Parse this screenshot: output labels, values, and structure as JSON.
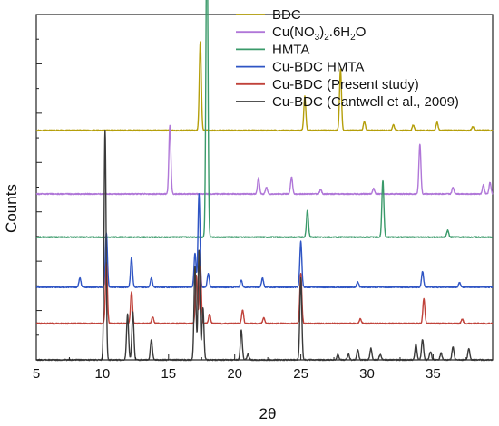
{
  "chart_data": {
    "type": "line",
    "xlabel": "2θ",
    "ylabel": "Counts",
    "xlim": [
      5,
      39.5
    ],
    "x_ticks": [
      5,
      10,
      15,
      20,
      25,
      30,
      35
    ],
    "x_tick_labels": [
      "5",
      "10",
      "15",
      "20",
      "25",
      "30",
      "35"
    ],
    "y_ticks_labeled": false,
    "grid": false,
    "legend_position": "top-right",
    "series": [
      {
        "name": "BDC",
        "color": "#b59f0b",
        "baseline": 5.05,
        "peaks": [
          [
            17.4,
            1.95
          ],
          [
            25.3,
            0.75
          ],
          [
            28.0,
            1.35
          ],
          [
            29.8,
            0.2
          ],
          [
            32.0,
            0.12
          ],
          [
            33.5,
            0.12
          ],
          [
            35.3,
            0.18
          ],
          [
            38.0,
            0.08
          ]
        ]
      },
      {
        "name": "Cu(NO3)2.6H2O",
        "color": "#b077d8",
        "baseline": 3.65,
        "peaks": [
          [
            15.1,
            1.5
          ],
          [
            21.8,
            0.35
          ],
          [
            24.3,
            0.38
          ],
          [
            22.4,
            0.15
          ],
          [
            26.5,
            0.1
          ],
          [
            30.5,
            0.12
          ],
          [
            34.0,
            1.1
          ],
          [
            36.5,
            0.15
          ],
          [
            38.8,
            0.2
          ],
          [
            39.3,
            0.25
          ]
        ]
      },
      {
        "name": "HMTA",
        "color": "#3a9a6a",
        "baseline": 2.7,
        "peaks": [
          [
            17.9,
            6.95
          ],
          [
            25.5,
            0.6
          ],
          [
            31.2,
            1.25
          ],
          [
            36.1,
            0.15
          ]
        ]
      },
      {
        "name": "Cu-BDC HMTA",
        "color": "#2f55c4",
        "baseline": 1.6,
        "peaks": [
          [
            8.3,
            0.2
          ],
          [
            10.3,
            1.2
          ],
          [
            12.2,
            0.65
          ],
          [
            13.7,
            0.2
          ],
          [
            17.0,
            0.75
          ],
          [
            17.3,
            2.05
          ],
          [
            18.0,
            0.3
          ],
          [
            20.5,
            0.15
          ],
          [
            22.1,
            0.2
          ],
          [
            25.0,
            1.0
          ],
          [
            29.3,
            0.12
          ],
          [
            34.2,
            0.35
          ],
          [
            37.0,
            0.1
          ]
        ]
      },
      {
        "name": "Cu-BDC (Present study)",
        "color": "#c0423a",
        "baseline": 0.8,
        "peaks": [
          [
            10.3,
            1.35
          ],
          [
            12.2,
            0.7
          ],
          [
            13.8,
            0.15
          ],
          [
            17.1,
            1.05
          ],
          [
            17.4,
            1.25
          ],
          [
            18.1,
            0.2
          ],
          [
            20.6,
            0.3
          ],
          [
            22.2,
            0.12
          ],
          [
            25.0,
            1.1
          ],
          [
            29.5,
            0.1
          ],
          [
            34.3,
            0.55
          ],
          [
            37.2,
            0.1
          ]
        ]
      },
      {
        "name": "Cu-BDC (Cantwell et al., 2009)",
        "color": "#3a3a3a",
        "baseline": 0.0,
        "peaks": [
          [
            10.2,
            5.05
          ],
          [
            11.9,
            1.0
          ],
          [
            12.3,
            1.05
          ],
          [
            13.7,
            0.45
          ],
          [
            17.0,
            2.05
          ],
          [
            17.3,
            2.4
          ],
          [
            17.6,
            1.15
          ],
          [
            20.5,
            0.65
          ],
          [
            21.0,
            0.12
          ],
          [
            25.0,
            1.8
          ],
          [
            27.8,
            0.12
          ],
          [
            28.6,
            0.12
          ],
          [
            29.3,
            0.22
          ],
          [
            30.3,
            0.25
          ],
          [
            31.0,
            0.12
          ],
          [
            33.7,
            0.35
          ],
          [
            34.2,
            0.45
          ],
          [
            34.8,
            0.18
          ],
          [
            35.6,
            0.15
          ],
          [
            36.5,
            0.28
          ],
          [
            37.7,
            0.25
          ]
        ]
      }
    ],
    "legend": {
      "entries": [
        {
          "text": "BDC",
          "formula": false
        },
        {
          "text": "Cu(NO",
          "sub1": "3",
          "mid": ")",
          "sub2": "2",
          "tail": ".6H",
          "sub3": "2",
          "end": "O",
          "formula": true
        },
        {
          "text": "HMTA",
          "formula": false
        },
        {
          "text": "Cu-BDC HMTA",
          "formula": false
        },
        {
          "text": "Cu-BDC (Present study)",
          "formula": false
        },
        {
          "text": "Cu-BDC (Cantwell et al., 2009)",
          "formula": false
        }
      ]
    }
  }
}
